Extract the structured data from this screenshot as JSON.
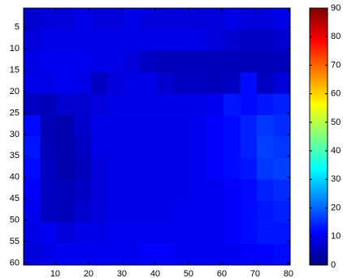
{
  "chart_data": {
    "type": "heatmap",
    "colormap": "jet",
    "y_reversed": true,
    "x": [
      3,
      8,
      13,
      18,
      23,
      28,
      33,
      38,
      43,
      48,
      53,
      58,
      63,
      68,
      73,
      78
    ],
    "y": [
      3,
      8,
      13,
      18,
      23,
      28,
      33,
      38,
      43,
      48,
      53,
      58
    ],
    "z": [
      [
        7,
        8,
        8,
        9,
        8,
        8,
        9,
        8,
        8,
        8,
        8,
        8,
        9,
        8,
        8,
        9
      ],
      [
        8,
        9,
        9,
        9,
        9,
        9,
        9,
        9,
        9,
        9,
        9,
        8,
        7,
        6,
        6,
        7
      ],
      [
        9,
        10,
        10,
        10,
        9,
        9,
        8,
        6,
        5,
        5,
        5,
        5,
        5,
        5,
        5,
        5
      ],
      [
        9,
        9,
        10,
        9,
        6,
        8,
        9,
        9,
        7,
        6,
        6,
        5,
        6,
        12,
        6,
        8
      ],
      [
        6,
        5,
        7,
        7,
        8,
        9,
        9,
        9,
        9,
        9,
        9,
        10,
        13,
        12,
        13,
        14
      ],
      [
        12,
        5,
        4,
        7,
        9,
        9,
        9,
        9,
        9,
        9,
        10,
        11,
        12,
        14,
        16,
        15
      ],
      [
        13,
        5,
        4,
        6,
        9,
        9,
        9,
        9,
        9,
        9,
        10,
        11,
        12,
        14,
        17,
        16
      ],
      [
        12,
        6,
        4,
        5,
        8,
        9,
        9,
        9,
        9,
        9,
        10,
        11,
        12,
        13,
        16,
        17
      ],
      [
        11,
        6,
        5,
        6,
        8,
        9,
        9,
        9,
        9,
        9,
        10,
        10,
        11,
        12,
        14,
        15
      ],
      [
        10,
        6,
        5,
        7,
        8,
        9,
        9,
        9,
        9,
        10,
        10,
        10,
        11,
        12,
        13,
        14
      ],
      [
        9,
        10,
        8,
        9,
        9,
        10,
        10,
        10,
        10,
        10,
        10,
        10,
        11,
        12,
        13,
        13
      ],
      [
        8,
        9,
        10,
        10,
        10,
        10,
        10,
        11,
        11,
        10,
        10,
        10,
        10,
        11,
        11,
        12
      ]
    ],
    "xlim": [
      0.5,
      80.5
    ],
    "ylim": [
      0.5,
      60.5
    ],
    "xticks": [
      10,
      20,
      30,
      40,
      50,
      60,
      70,
      80
    ],
    "yticks": [
      5,
      10,
      15,
      20,
      25,
      30,
      35,
      40,
      45,
      50,
      55,
      60
    ],
    "colorbar": {
      "lim": [
        0,
        90
      ],
      "ticks": [
        0,
        10,
        20,
        30,
        40,
        50,
        60,
        70,
        80,
        90
      ]
    }
  }
}
